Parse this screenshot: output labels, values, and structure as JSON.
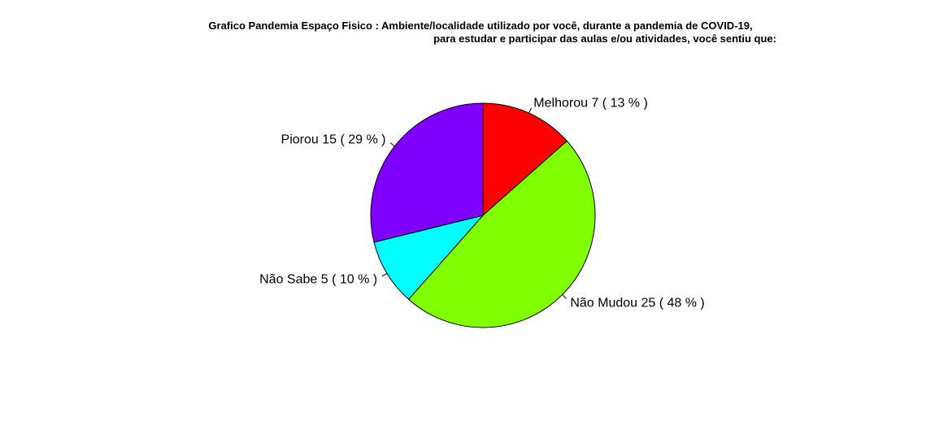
{
  "chart_data": {
    "type": "pie",
    "title_lines": [
      "Grafico Pandemia Espaço Fisico : Ambiente/localidade utilizado por você, durante a pandemia de COVID-19,",
      "para estudar e participar das aulas e/ou atividades, você sentiu que:"
    ],
    "start_angle_deg": 90,
    "direction": "clockwise",
    "slices": [
      {
        "label": "Melhorou",
        "value": 7,
        "percent": 13,
        "display": "Melhorou   7 ( 13 % )",
        "color": "#FF0000"
      },
      {
        "label": "Não Mudou",
        "value": 25,
        "percent": 48,
        "display": "Não Mudou   25 ( 48 % )",
        "color": "#80FF00"
      },
      {
        "label": "Não Sabe",
        "value": 5,
        "percent": 10,
        "display": "Não Sabe   5 ( 10 % )",
        "color": "#00FFFF"
      },
      {
        "label": "Piorou",
        "value": 15,
        "percent": 29,
        "display": "Piorou   15 ( 29 % )",
        "color": "#8000FF"
      }
    ]
  }
}
